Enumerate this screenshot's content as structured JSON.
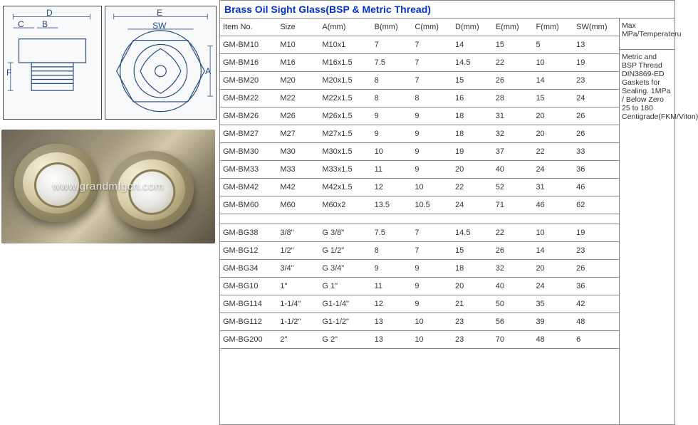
{
  "title": "Brass Oil Sight Glass(BSP & Metric Thread)",
  "watermark": "www.grandmfgcn.com",
  "drawing_labels": {
    "D": "D",
    "C": "C",
    "B": "B",
    "F": "F",
    "E": "E",
    "SW": "SW",
    "A": "A"
  },
  "columns": [
    "Item No.",
    "Size",
    "A(mm)",
    "B(mm)",
    "C(mm)",
    "D(mm)",
    "E(mm)",
    "F(mm)",
    "SW(mm)"
  ],
  "notes_head": "Max MPa/Temperateru",
  "notes_body": "Metric and BSP Thread DIN3869-ED Gaskets for Sealing.  1MPa  /  Below Zero 25 to 180 Centigrade(FKM/Viton)",
  "metric_rows": [
    [
      "GM-BM10",
      "M10",
      "M10x1",
      "7",
      "7",
      "14",
      "15",
      "5",
      "13"
    ],
    [
      "GM-BM16",
      "M16",
      "M16x1.5",
      "7.5",
      "7",
      "14.5",
      "22",
      "10",
      "19"
    ],
    [
      "GM-BM20",
      "M20",
      "M20x1.5",
      "8",
      "7",
      "15",
      "26",
      "14",
      "23"
    ],
    [
      "GM-BM22",
      "M22",
      "M22x1.5",
      "8",
      "8",
      "16",
      "28",
      "15",
      "24"
    ],
    [
      "GM-BM26",
      "M26",
      "M26x1.5",
      "9",
      "9",
      "18",
      "31",
      "20",
      "26"
    ],
    [
      "GM-BM27",
      "M27",
      "M27x1.5",
      "9",
      "9",
      "18",
      "32",
      "20",
      "26"
    ],
    [
      "GM-BM30",
      "M30",
      "M30x1.5",
      "10",
      "9",
      "19",
      "37",
      "22",
      "33"
    ],
    [
      "GM-BM33",
      "M33",
      "M33x1.5",
      "11",
      "9",
      "20",
      "40",
      "24",
      "36"
    ],
    [
      "GM-BM42",
      "M42",
      "M42x1.5",
      "12",
      "10",
      "22",
      "52",
      "31",
      "46"
    ],
    [
      "GM-BM60",
      "M60",
      "M60x2",
      "13.5",
      "10.5",
      "24",
      "71",
      "46",
      "62"
    ]
  ],
  "bsp_rows": [
    [
      "GM-BG38",
      "3/8\"",
      "G 3/8\"",
      "7.5",
      "7",
      "14.5",
      "22",
      "10",
      "19"
    ],
    [
      "GM-BG12",
      "1/2\"",
      "G 1/2\"",
      "8",
      "7",
      "15",
      "26",
      "14",
      "23"
    ],
    [
      "GM-BG34",
      "3/4\"",
      "G 3/4\"",
      "9",
      "9",
      "18",
      "32",
      "20",
      "26"
    ],
    [
      "GM-BG10",
      "1\"",
      "G 1\"",
      "11",
      "9",
      "20",
      "40",
      "24",
      "36"
    ],
    [
      "GM-BG114",
      "1-1/4\"",
      "G1-1/4\"",
      "12",
      "9",
      "21",
      "50",
      "35",
      "42"
    ],
    [
      "GM-BG112",
      "1-1/2\"",
      "G1-1/2\"",
      "13",
      "10",
      "23",
      "56",
      "39",
      "48"
    ],
    [
      "GM-BG200",
      "2\"",
      "G 2\"",
      "13",
      "10",
      "23",
      "70",
      "48",
      "6"
    ]
  ],
  "col_widths": [
    "68px",
    "50px",
    "62px",
    "48px",
    "48px",
    "48px",
    "48px",
    "48px",
    "54px"
  ],
  "colors": {
    "title": "#0033cc",
    "border": "#888888",
    "text": "#333333",
    "drawing_stroke": "#2a4a7a"
  }
}
